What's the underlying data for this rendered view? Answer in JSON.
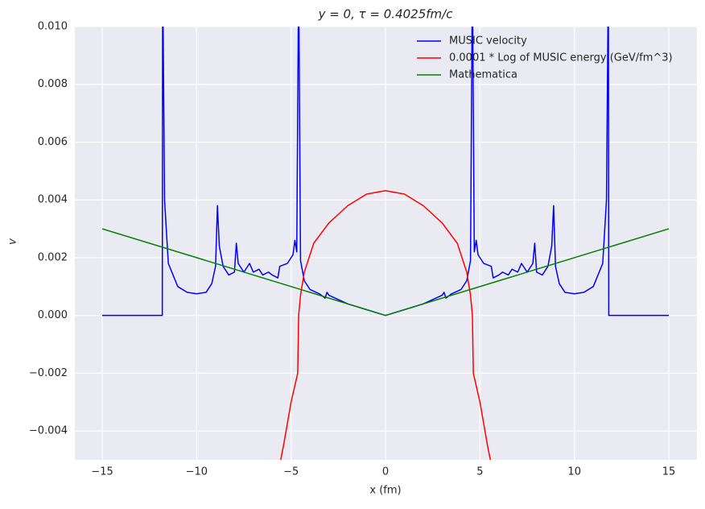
{
  "chart_data": {
    "type": "line",
    "title": "y = 0, τ = 0.4025fm/c",
    "x_label": "x (fm)",
    "y_label": "v",
    "xlim": [
      -16.45,
      16.49
    ],
    "ylim": [
      -0.005,
      0.01
    ],
    "xticks": [
      {
        "value": -15,
        "label": "−15"
      },
      {
        "value": -10,
        "label": "−10"
      },
      {
        "value": -5,
        "label": "−5"
      },
      0,
      5,
      10,
      15
    ],
    "yticks": [
      {
        "value": -0.004,
        "label": "−0.004"
      },
      {
        "value": -0.002,
        "label": "−0.002"
      },
      {
        "value": 0,
        "label": "0.000"
      },
      {
        "value": 0.002,
        "label": "0.002"
      },
      {
        "value": 0.004,
        "label": "0.004"
      },
      {
        "value": 0.006,
        "label": "0.006"
      },
      {
        "value": 0.008,
        "label": "0.008"
      },
      {
        "value": 0.01,
        "label": "0.010"
      }
    ],
    "grid": true,
    "legend": "upper-right",
    "series": [
      {
        "name": "MUSIC velocity",
        "color": "#0000ff",
        "x": [
          -15,
          -11.82,
          -11.8,
          -11.7,
          -11.5,
          -11,
          -10.5,
          -10,
          -9.5,
          -9.2,
          -9.0,
          -8.9,
          -8.8,
          -8.6,
          -8.3,
          -8.0,
          -7.9,
          -7.8,
          -7.5,
          -7.2,
          -7.0,
          -6.7,
          -6.5,
          -6.2,
          -6.0,
          -5.7,
          -5.6,
          -5.2,
          -4.9,
          -4.8,
          -4.7,
          -4.6,
          -4.5,
          -4.3,
          -4.0,
          -3.5,
          -3.2,
          -3.1,
          -3.0,
          -2.5,
          -2,
          -1,
          0,
          1,
          2,
          2.5,
          3.0,
          3.1,
          3.2,
          3.5,
          4.0,
          4.3,
          4.5,
          4.6,
          4.7,
          4.8,
          4.9,
          5.2,
          5.6,
          5.7,
          6.0,
          6.2,
          6.5,
          6.7,
          7.0,
          7.2,
          7.5,
          7.8,
          7.9,
          8.0,
          8.3,
          8.6,
          8.8,
          8.9,
          9.0,
          9.2,
          9.5,
          10,
          10.5,
          11,
          11.5,
          11.7,
          11.8,
          11.82,
          15
        ],
        "values": [
          0,
          0,
          0.012,
          0.004,
          0.0018,
          0.001,
          0.0008,
          0.00075,
          0.0008,
          0.0011,
          0.0017,
          0.0038,
          0.0024,
          0.0017,
          0.0014,
          0.0015,
          0.0025,
          0.0018,
          0.0015,
          0.0018,
          0.0015,
          0.0016,
          0.0014,
          0.0015,
          0.0014,
          0.0013,
          0.0017,
          0.0018,
          0.0021,
          0.0026,
          0.0022,
          0.012,
          0.0019,
          0.0012,
          0.0009,
          0.00075,
          0.0006,
          0.0008,
          0.0007,
          0.00055,
          0.0004,
          0.0002,
          0,
          0.0002,
          0.0004,
          0.00055,
          0.0007,
          0.0008,
          0.0006,
          0.00075,
          0.0009,
          0.0012,
          0.0019,
          0.012,
          0.0022,
          0.0026,
          0.0021,
          0.0018,
          0.0017,
          0.0013,
          0.0014,
          0.0015,
          0.0014,
          0.0016,
          0.0015,
          0.0018,
          0.0015,
          0.0018,
          0.0025,
          0.0015,
          0.0014,
          0.0017,
          0.0024,
          0.0038,
          0.0017,
          0.0011,
          0.0008,
          0.00075,
          0.0008,
          0.001,
          0.0018,
          0.004,
          0.012,
          0,
          0
        ]
      },
      {
        "name": "0.0001 * Log of MUSIC energy (GeV/fm^3)",
        "color": "#ff0000",
        "x": [
          -5.55,
          -5.4,
          -5.0,
          -4.65,
          -4.6,
          -4.5,
          -4.3,
          -3.8,
          -3.0,
          -2.5,
          -2,
          -1,
          0,
          1,
          2,
          2.5,
          3.0,
          3.8,
          4.3,
          4.5,
          4.6,
          4.65,
          5.0,
          5.4,
          5.55
        ],
        "values": [
          -0.005,
          -0.0045,
          -0.003,
          -0.002,
          0,
          0.0007,
          0.0015,
          0.0025,
          0.0032,
          0.0035,
          0.0038,
          0.0042,
          0.00432,
          0.0042,
          0.0038,
          0.0035,
          0.0032,
          0.0025,
          0.0015,
          0.0007,
          0,
          -0.002,
          -0.003,
          -0.0045,
          -0.005
        ]
      },
      {
        "name": "Mathematica",
        "color": "#008000",
        "x": [
          -15,
          0,
          15
        ],
        "values": [
          0.003,
          0,
          0.003
        ]
      }
    ]
  }
}
